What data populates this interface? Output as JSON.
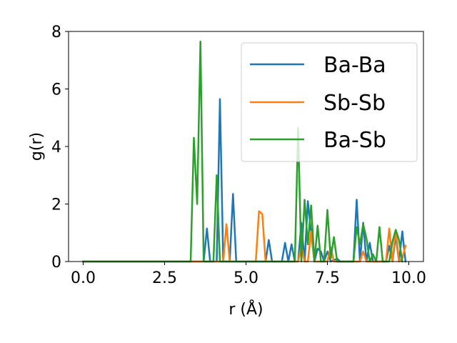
{
  "chart_data": {
    "type": "line",
    "title": "",
    "xlabel": "r (Å)",
    "ylabel": "g(r)",
    "xlim": [
      -0.45,
      10.45
    ],
    "ylim": [
      0,
      8
    ],
    "xticks": [
      0.0,
      2.5,
      5.0,
      7.5,
      10.0
    ],
    "xtick_labels": [
      "0.0",
      "2.5",
      "5.0",
      "7.5",
      "10.0"
    ],
    "yticks": [
      0,
      2,
      4,
      6,
      8
    ],
    "ytick_labels": [
      "0",
      "2",
      "4",
      "6",
      "8"
    ],
    "grid": false,
    "legend_position": "top-right",
    "series": [
      {
        "name": "Ba-Ba",
        "color": "#1f77b4",
        "x": [
          0,
          3.7,
          3.8,
          3.9,
          4.1,
          4.2,
          4.3,
          4.5,
          4.6,
          4.7,
          5.6,
          5.7,
          5.8,
          6.1,
          6.2,
          6.3,
          6.4,
          6.5,
          6.6,
          6.7,
          6.8,
          6.9,
          7.0,
          7.1,
          7.2,
          7.3,
          7.4,
          7.5,
          7.6,
          7.8,
          7.9,
          8.1,
          8.3,
          8.4,
          8.5,
          8.6,
          8.7,
          8.8,
          8.9,
          9.0,
          9.3,
          9.4,
          9.5,
          9.6,
          9.7,
          9.8,
          9.9
        ],
        "y": [
          0,
          0,
          1.15,
          0,
          0,
          5.65,
          0,
          0,
          2.35,
          0,
          0,
          0.75,
          0,
          0,
          0.65,
          0,
          0.6,
          0,
          0,
          1.35,
          0,
          2.1,
          1.0,
          0,
          0.45,
          0.35,
          0,
          0.35,
          0,
          0.1,
          0,
          0,
          0,
          2.15,
          0,
          1.35,
          0,
          0.65,
          0,
          0,
          0,
          0.55,
          0,
          0.9,
          0,
          1.05,
          0
        ]
      },
      {
        "name": "Sb-Sb",
        "color": "#ff7f0e",
        "x": [
          0,
          4.3,
          4.4,
          4.5,
          5.3,
          5.4,
          5.5,
          5.6,
          6.6,
          6.7,
          6.8,
          6.9,
          7.0,
          7.1,
          7.5,
          7.6,
          7.7,
          8.5,
          8.6,
          8.7,
          9.3,
          9.4,
          9.5,
          9.6,
          9.7,
          9.8,
          9.9
        ],
        "y": [
          0,
          0,
          1.3,
          0,
          0,
          1.75,
          1.65,
          0,
          0,
          0.55,
          0,
          0,
          1.05,
          0,
          0,
          0.5,
          0,
          0,
          0.35,
          0,
          0,
          1.15,
          0,
          1.1,
          0,
          0.1,
          0.55
        ]
      },
      {
        "name": "Ba-Sb",
        "color": "#2ca02c",
        "x": [
          0,
          3.3,
          3.4,
          3.5,
          3.6,
          3.7,
          4.0,
          4.1,
          4.2,
          6.4,
          6.5,
          6.6,
          6.7,
          6.8,
          6.9,
          7.0,
          7.1,
          7.2,
          7.3,
          7.4,
          7.5,
          7.6,
          7.7,
          7.8,
          8.3,
          8.4,
          8.5,
          8.6,
          8.7,
          8.8,
          8.9,
          9.0,
          9.1,
          9.2,
          9.4,
          9.5,
          9.6,
          9.7,
          9.8
        ],
        "y": [
          0,
          0,
          4.3,
          2.0,
          7.65,
          0,
          0,
          3.0,
          0,
          0,
          0,
          4.65,
          0,
          2.15,
          0.6,
          1.95,
          0,
          1.25,
          0,
          0,
          1.8,
          0.1,
          0.85,
          0,
          0,
          1.2,
          0.6,
          1.3,
          0.8,
          0,
          0.25,
          0,
          1.2,
          0,
          0,
          0.7,
          1.1,
          0.75,
          0
        ]
      }
    ]
  }
}
